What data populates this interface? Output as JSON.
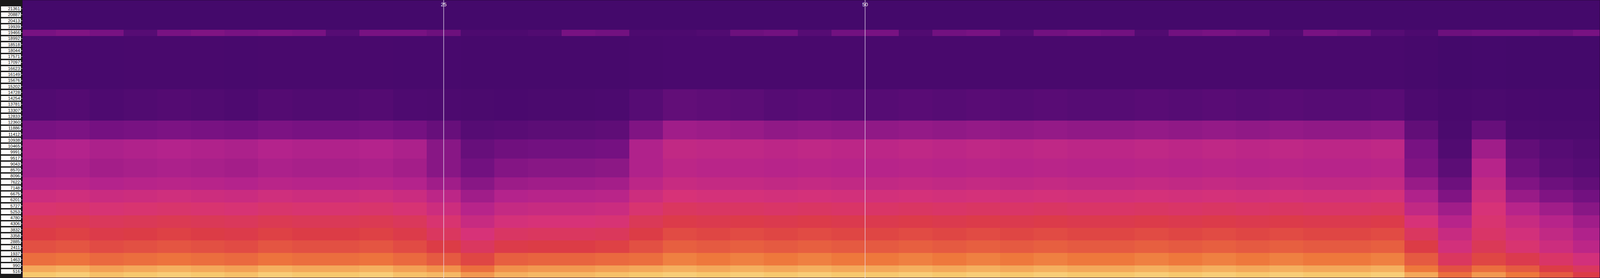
{
  "chart_data": {
    "type": "heatmap",
    "xlim": [
      0,
      93.6
    ],
    "ylim": [
      0,
      22050
    ],
    "xticks": [
      25,
      50
    ],
    "yticks": [
      21361,
      20887,
      20413,
      19939,
      19466,
      18992,
      18518,
      18044,
      17571,
      17097,
      16623,
      16149,
      15676,
      15202,
      14728,
      14254,
      13781,
      13307,
      12833,
      12360,
      11886,
      11412,
      10938,
      10465,
      9991,
      9517,
      9043,
      8570,
      8096,
      7622,
      7148,
      6675,
      6201,
      5727,
      5253,
      4780,
      4306,
      3832,
      3358,
      2885,
      2411,
      1937,
      1463,
      990,
      516
    ],
    "grid": "x",
    "zlim": [
      0,
      100
    ],
    "x_bins": [
      0,
      2,
      4,
      6,
      8,
      10,
      12,
      14,
      16,
      18,
      20,
      22,
      24,
      26,
      28,
      30,
      32,
      34,
      36,
      38,
      40,
      42,
      44,
      46,
      48,
      50,
      52,
      54,
      56,
      58,
      60,
      62,
      64,
      66,
      68,
      70,
      72,
      74,
      76,
      78,
      80,
      82,
      84,
      86,
      88,
      90,
      92,
      93.6
    ],
    "y_bins": [
      0,
      500,
      1000,
      2000,
      3000,
      4000,
      5000,
      6000,
      7000,
      8000,
      9500,
      11000,
      12500,
      15000,
      19200,
      19700,
      22050
    ],
    "z": [
      [
        92,
        93,
        91,
        92,
        93,
        92,
        91,
        93,
        92,
        92,
        93,
        91,
        90,
        86,
        89,
        90,
        90,
        91,
        92,
        93,
        92,
        93,
        92,
        93,
        92,
        92,
        93,
        92,
        93,
        92,
        93,
        92,
        92,
        93,
        92,
        93,
        92,
        93,
        92,
        92,
        93,
        88,
        80,
        86,
        82,
        76,
        70
      ],
      [
        88,
        89,
        87,
        88,
        89,
        88,
        87,
        89,
        88,
        88,
        89,
        87,
        85,
        80,
        85,
        86,
        86,
        87,
        88,
        89,
        88,
        89,
        88,
        89,
        88,
        88,
        89,
        88,
        89,
        88,
        89,
        88,
        88,
        89,
        88,
        89,
        88,
        89,
        88,
        88,
        89,
        82,
        74,
        80,
        76,
        70,
        64
      ],
      [
        80,
        81,
        79,
        80,
        81,
        80,
        79,
        81,
        80,
        80,
        81,
        79,
        76,
        72,
        77,
        78,
        78,
        79,
        80,
        83,
        82,
        83,
        82,
        83,
        82,
        82,
        83,
        82,
        83,
        82,
        83,
        82,
        82,
        83,
        82,
        83,
        82,
        83,
        82,
        82,
        83,
        76,
        64,
        72,
        68,
        62,
        56
      ],
      [
        74,
        75,
        73,
        74,
        75,
        74,
        73,
        75,
        74,
        74,
        75,
        73,
        70,
        64,
        69,
        70,
        70,
        71,
        74,
        77,
        76,
        77,
        76,
        77,
        76,
        76,
        77,
        76,
        77,
        76,
        77,
        76,
        76,
        77,
        76,
        77,
        76,
        77,
        76,
        76,
        77,
        70,
        56,
        66,
        60,
        54,
        48
      ],
      [
        70,
        71,
        69,
        70,
        71,
        70,
        69,
        71,
        70,
        70,
        71,
        69,
        64,
        58,
        63,
        64,
        64,
        65,
        70,
        73,
        72,
        73,
        72,
        73,
        72,
        72,
        73,
        72,
        73,
        72,
        73,
        72,
        72,
        73,
        72,
        73,
        72,
        73,
        72,
        72,
        73,
        64,
        52,
        62,
        56,
        50,
        44
      ],
      [
        66,
        67,
        65,
        66,
        67,
        66,
        65,
        67,
        66,
        66,
        67,
        65,
        60,
        52,
        57,
        58,
        58,
        59,
        66,
        69,
        68,
        69,
        68,
        69,
        68,
        68,
        69,
        68,
        69,
        68,
        69,
        68,
        68,
        69,
        68,
        69,
        68,
        69,
        68,
        68,
        69,
        58,
        46,
        60,
        52,
        46,
        40
      ],
      [
        60,
        61,
        59,
        60,
        61,
        60,
        59,
        61,
        60,
        60,
        61,
        59,
        54,
        46,
        51,
        52,
        52,
        53,
        60,
        64,
        63,
        63,
        62,
        63,
        62,
        62,
        63,
        62,
        63,
        62,
        63,
        62,
        62,
        63,
        62,
        63,
        62,
        63,
        62,
        62,
        63,
        50,
        40,
        58,
        46,
        40,
        34
      ],
      [
        54,
        55,
        53,
        54,
        55,
        54,
        53,
        55,
        54,
        54,
        55,
        53,
        48,
        40,
        45,
        46,
        46,
        47,
        54,
        58,
        57,
        57,
        56,
        57,
        56,
        56,
        57,
        56,
        57,
        56,
        57,
        56,
        56,
        57,
        56,
        57,
        56,
        57,
        56,
        56,
        57,
        44,
        32,
        54,
        38,
        32,
        28
      ],
      [
        46,
        47,
        45,
        46,
        47,
        46,
        45,
        47,
        46,
        46,
        47,
        45,
        40,
        34,
        39,
        40,
        40,
        41,
        48,
        52,
        51,
        51,
        50,
        51,
        50,
        50,
        51,
        50,
        51,
        50,
        51,
        50,
        50,
        51,
        50,
        51,
        50,
        51,
        50,
        50,
        51,
        38,
        26,
        50,
        32,
        26,
        22
      ],
      [
        42,
        43,
        41,
        42,
        43,
        42,
        41,
        43,
        42,
        42,
        43,
        41,
        34,
        28,
        33,
        34,
        34,
        35,
        44,
        48,
        47,
        47,
        46,
        47,
        46,
        46,
        47,
        46,
        47,
        46,
        47,
        46,
        46,
        47,
        46,
        47,
        46,
        47,
        46,
        46,
        47,
        32,
        20,
        46,
        26,
        20,
        18
      ],
      [
        44,
        45,
        43,
        44,
        45,
        44,
        43,
        45,
        44,
        44,
        45,
        43,
        34,
        24,
        27,
        28,
        28,
        29,
        44,
        50,
        49,
        49,
        48,
        49,
        48,
        48,
        49,
        48,
        49,
        48,
        49,
        48,
        48,
        49,
        48,
        49,
        48,
        49,
        48,
        48,
        49,
        30,
        16,
        40,
        22,
        18,
        16
      ],
      [
        30,
        31,
        29,
        30,
        31,
        30,
        29,
        31,
        30,
        30,
        31,
        29,
        24,
        18,
        19,
        20,
        20,
        21,
        32,
        40,
        39,
        38,
        36,
        37,
        36,
        36,
        37,
        36,
        37,
        36,
        37,
        36,
        36,
        37,
        36,
        37,
        36,
        37,
        36,
        36,
        37,
        22,
        12,
        24,
        14,
        12,
        12
      ],
      [
        16,
        17,
        15,
        16,
        17,
        16,
        15,
        17,
        16,
        16,
        17,
        15,
        14,
        12,
        11,
        12,
        12,
        13,
        18,
        22,
        21,
        20,
        18,
        19,
        18,
        18,
        19,
        18,
        19,
        18,
        19,
        18,
        18,
        19,
        18,
        19,
        18,
        19,
        18,
        18,
        19,
        14,
        10,
        12,
        10,
        9,
        9
      ],
      [
        10,
        10,
        9,
        10,
        10,
        10,
        9,
        10,
        10,
        10,
        10,
        9,
        9,
        8,
        8,
        8,
        8,
        8,
        10,
        11,
        11,
        10,
        10,
        10,
        10,
        10,
        10,
        10,
        10,
        10,
        10,
        10,
        10,
        10,
        10,
        10,
        10,
        10,
        10,
        10,
        10,
        8,
        6,
        7,
        6,
        6,
        6
      ],
      [
        30,
        32,
        30,
        18,
        30,
        32,
        30,
        31,
        30,
        18,
        30,
        30,
        26,
        14,
        14,
        16,
        30,
        28,
        14,
        14,
        16,
        26,
        28,
        18,
        28,
        30,
        16,
        28,
        30,
        18,
        28,
        30,
        28,
        16,
        28,
        30,
        28,
        16,
        30,
        28,
        18,
        14,
        26,
        28,
        28,
        26,
        30
      ],
      [
        6,
        6,
        6,
        6,
        6,
        6,
        6,
        6,
        6,
        6,
        6,
        6,
        6,
        6,
        6,
        6,
        6,
        6,
        6,
        6,
        6,
        6,
        6,
        6,
        6,
        6,
        6,
        6,
        6,
        6,
        6,
        6,
        6,
        6,
        6,
        6,
        6,
        6,
        6,
        6,
        6,
        6,
        6,
        6,
        6,
        6,
        6
      ]
    ]
  }
}
